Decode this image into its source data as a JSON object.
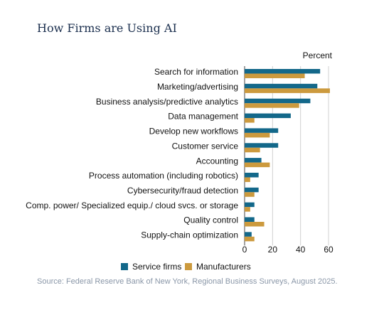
{
  "title": "How Firms are Using AI",
  "source": "Source: Federal Reserve Bank of New York, Regional Business Surveys, August 2025.",
  "chart_data": {
    "type": "bar",
    "orientation": "horizontal",
    "xlabel": "Percent",
    "xlim": [
      0,
      60
    ],
    "xticks": [
      0,
      20,
      40,
      60
    ],
    "grid": true,
    "legend_position": "bottom",
    "categories": [
      "Search for information",
      "Marketing/advertising",
      "Business analysis/predictive analytics",
      "Data management",
      "Develop new workflows",
      "Customer service",
      "Accounting",
      "Process automation (including robotics)",
      "Cybersecurity/fraud detection",
      "Comp. power/ Specialized equip./ cloud svcs. or storage",
      "Quality control",
      "Supply-chain optimization"
    ],
    "series": [
      {
        "name": "Service firms",
        "color": "#13688a",
        "values": [
          54,
          52,
          47,
          33,
          24,
          24,
          12,
          10,
          10,
          7,
          7,
          5
        ]
      },
      {
        "name": "Manufacturers",
        "color": "#cc9a3e",
        "values": [
          43,
          61,
          39,
          7,
          18,
          11,
          18,
          4,
          7,
          4,
          14,
          7
        ]
      }
    ]
  }
}
